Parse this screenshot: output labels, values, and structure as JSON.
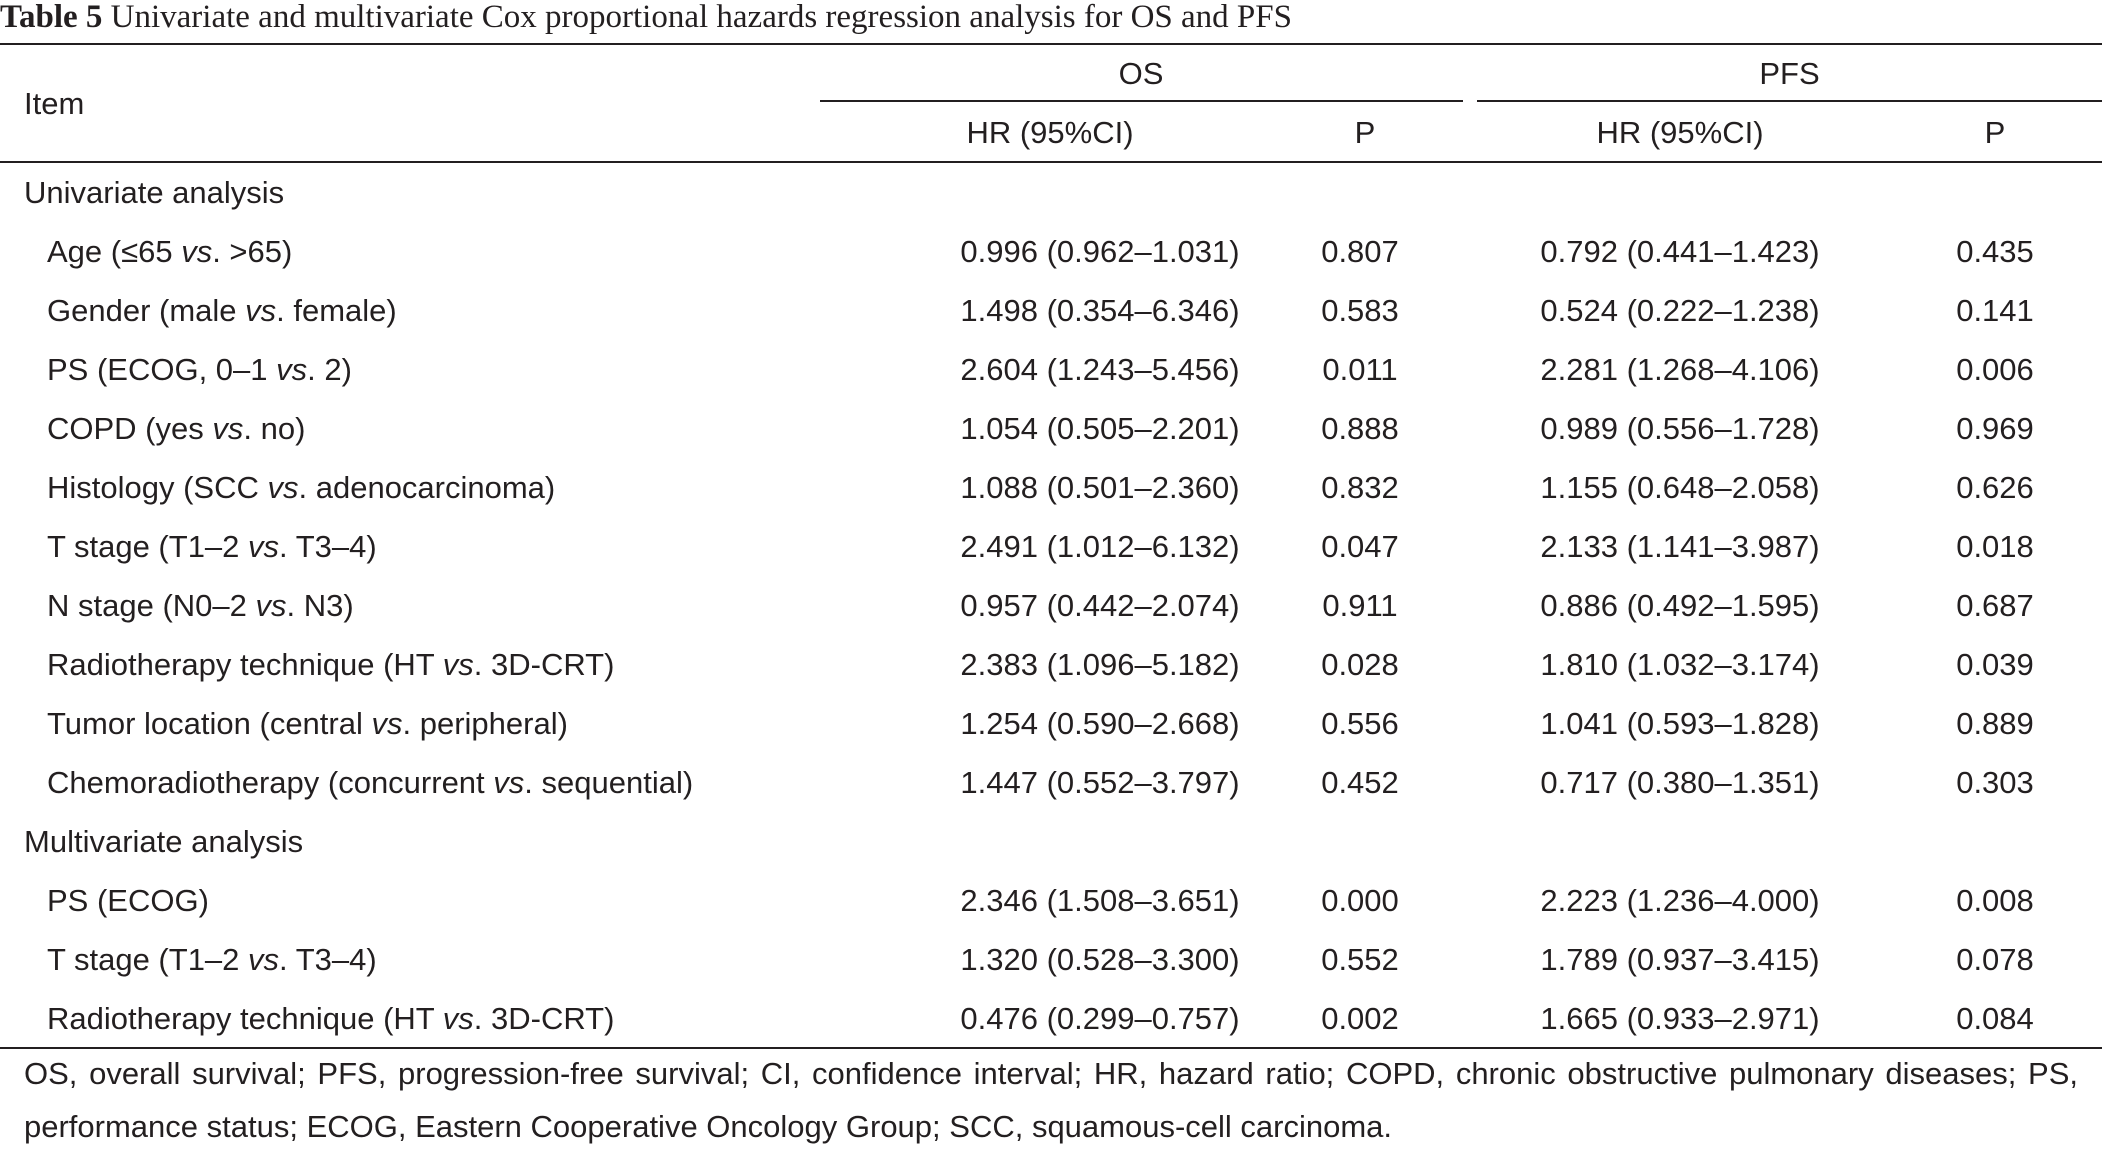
{
  "caption": {
    "label": "Table 5",
    "text": "Univariate and multivariate Cox proportional hazards regression analysis for OS and PFS"
  },
  "header": {
    "item": "Item",
    "os": "OS",
    "pfs": "PFS",
    "hr": "HR (95%CI)",
    "p": "P"
  },
  "sections": [
    {
      "title": "Univariate analysis",
      "rows": [
        {
          "label_pre": "Age (≤65 ",
          "vs": "vs",
          "label_post": ". >65)",
          "os_hr": "0.996 (0.962–1.031)",
          "os_p": "0.807",
          "pfs_hr": "0.792 (0.441–1.423)",
          "pfs_p": "0.435"
        },
        {
          "label_pre": "Gender (male ",
          "vs": "vs",
          "label_post": ". female)",
          "os_hr": "1.498 (0.354–6.346)",
          "os_p": "0.583",
          "pfs_hr": "0.524 (0.222–1.238)",
          "pfs_p": "0.141"
        },
        {
          "label_pre": "PS (ECOG, 0–1 ",
          "vs": "vs",
          "label_post": ". 2)",
          "os_hr": "2.604 (1.243–5.456)",
          "os_p": "0.011",
          "pfs_hr": "2.281 (1.268–4.106)",
          "pfs_p": "0.006"
        },
        {
          "label_pre": "COPD (yes ",
          "vs": "vs",
          "label_post": ". no)",
          "os_hr": "1.054 (0.505–2.201)",
          "os_p": "0.888",
          "pfs_hr": "0.989 (0.556–1.728)",
          "pfs_p": "0.969"
        },
        {
          "label_pre": "Histology (SCC ",
          "vs": "vs",
          "label_post": ". adenocarcinoma)",
          "os_hr": "1.088 (0.501–2.360)",
          "os_p": "0.832",
          "pfs_hr": "1.155 (0.648–2.058)",
          "pfs_p": "0.626"
        },
        {
          "label_pre": "T stage (T1–2 ",
          "vs": "vs",
          "label_post": ". T3–4)",
          "os_hr": "2.491 (1.012–6.132)",
          "os_p": "0.047",
          "pfs_hr": "2.133 (1.141–3.987)",
          "pfs_p": "0.018"
        },
        {
          "label_pre": "N stage (N0–2 ",
          "vs": "vs",
          "label_post": ". N3)",
          "os_hr": "0.957 (0.442–2.074)",
          "os_p": "0.911",
          "pfs_hr": "0.886 (0.492–1.595)",
          "pfs_p": "0.687"
        },
        {
          "label_pre": "Radiotherapy technique (HT ",
          "vs": "vs",
          "label_post": ". 3D-CRT)",
          "os_hr": "2.383 (1.096–5.182)",
          "os_p": "0.028",
          "pfs_hr": "1.810 (1.032–3.174)",
          "pfs_p": "0.039"
        },
        {
          "label_pre": "Tumor location (central ",
          "vs": "vs",
          "label_post": ". peripheral)",
          "os_hr": "1.254 (0.590–2.668)",
          "os_p": "0.556",
          "pfs_hr": "1.041 (0.593–1.828)",
          "pfs_p": "0.889"
        },
        {
          "label_pre": "Chemoradiotherapy (concurrent ",
          "vs": "vs",
          "label_post": ". sequential)",
          "os_hr": "1.447 (0.552–3.797)",
          "os_p": "0.452",
          "pfs_hr": "0.717 (0.380–1.351)",
          "pfs_p": "0.303"
        }
      ]
    },
    {
      "title": "Multivariate analysis",
      "rows": [
        {
          "label_pre": "PS (ECOG)",
          "vs": "",
          "label_post": "",
          "os_hr": "2.346 (1.508–3.651)",
          "os_p": "0.000",
          "pfs_hr": "2.223 (1.236–4.000)",
          "pfs_p": "0.008"
        },
        {
          "label_pre": "T stage (T1–2 ",
          "vs": "vs",
          "label_post": ". T3–4)",
          "os_hr": "1.320 (0.528–3.300)",
          "os_p": "0.552",
          "pfs_hr": "1.789 (0.937–3.415)",
          "pfs_p": "0.078"
        },
        {
          "label_pre": "Radiotherapy technique (HT ",
          "vs": "vs",
          "label_post": ". 3D-CRT)",
          "os_hr": "0.476 (0.299–0.757)",
          "os_p": "0.002",
          "pfs_hr": "1.665 (0.933–2.971)",
          "pfs_p": "0.084"
        }
      ]
    }
  ],
  "footnote": "OS, overall survival; PFS, progression-free survival; CI, confidence interval; HR, hazard ratio; COPD, chronic obstructive pulmonary diseases; PS, performance status; ECOG, Eastern Cooperative Oncology Group; SCC, squamous-cell carcinoma."
}
